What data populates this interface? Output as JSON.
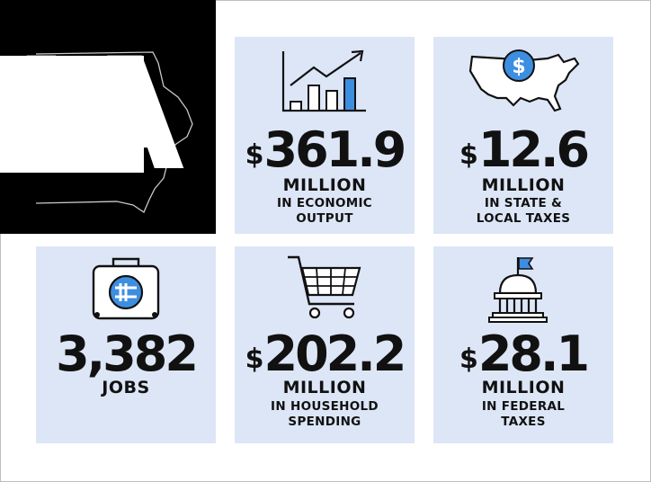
{
  "state": {
    "abbr": "IA"
  },
  "colors": {
    "card_bg": "#dde6f6",
    "accent_blue": "#3d8ee0",
    "black": "#000000"
  },
  "cards": [
    {
      "icon": "growth-chart-icon",
      "dollar": "$",
      "value": "361.9",
      "unit": "MILLION",
      "desc_lines": [
        "IN ECONOMIC",
        "OUTPUT"
      ]
    },
    {
      "icon": "usa-map-dollar-icon",
      "dollar": "$",
      "value": "12.6",
      "unit": "MILLION",
      "desc_lines": [
        "IN STATE &",
        "LOCAL TAXES"
      ]
    },
    {
      "icon": "medical-kit-icon",
      "dollar": "",
      "value": "3,382",
      "unit": "JOBS",
      "desc_lines": []
    },
    {
      "icon": "shopping-cart-icon",
      "dollar": "$",
      "value": "202.2",
      "unit": "MILLION",
      "desc_lines": [
        "IN HOUSEHOLD",
        "SPENDING"
      ]
    },
    {
      "icon": "capitol-building-icon",
      "dollar": "$",
      "value": "28.1",
      "unit": "MILLION",
      "desc_lines": [
        "IN FEDERAL",
        "TAXES"
      ]
    }
  ]
}
